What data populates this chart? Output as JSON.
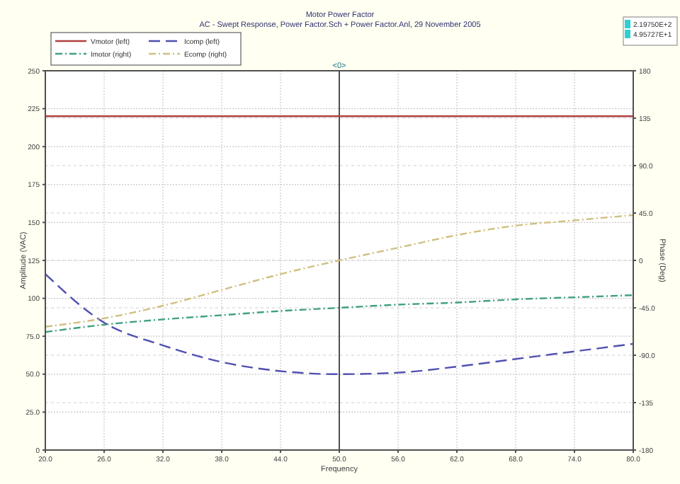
{
  "chart_data": {
    "type": "line",
    "title": "Motor Power Factor",
    "subtitle": "AC - Swept Response,    Power Factor.Sch + Power Factor.Anl,  29 November 2005",
    "xlabel": "Frequency",
    "ylabel": "Amplitude (VAC)",
    "y2label": "Phase (Deg)",
    "x": [
      20,
      26,
      32,
      38,
      44,
      50,
      56,
      62,
      68,
      74,
      80
    ],
    "xlim": [
      20,
      80
    ],
    "xticks": [
      {
        "value": 20,
        "label": "20.0"
      },
      {
        "value": 26,
        "label": "26.0"
      },
      {
        "value": 32,
        "label": "32.0"
      },
      {
        "value": 38,
        "label": "38.0"
      },
      {
        "value": 44,
        "label": "44.0"
      },
      {
        "value": 50,
        "label": "50.0"
      },
      {
        "value": 56,
        "label": "56.0"
      },
      {
        "value": 62,
        "label": "62.0"
      },
      {
        "value": 68,
        "label": "68.0"
      },
      {
        "value": 74,
        "label": "74.0"
      },
      {
        "value": 80,
        "label": "80.0"
      }
    ],
    "ylim": [
      0,
      250
    ],
    "yticks": [
      0,
      {
        "value": 25,
        "label": "25.0"
      },
      {
        "value": 50,
        "label": "50.0"
      },
      {
        "value": 75,
        "label": "75.0"
      },
      100,
      125,
      150,
      175,
      200,
      225,
      250
    ],
    "y2lim": [
      -180,
      180
    ],
    "y2ticks": [
      -180,
      -135,
      {
        "value": -90,
        "label": "-90.0"
      },
      {
        "value": -45,
        "label": "-45.0"
      },
      0,
      {
        "value": 45,
        "label": "45.0"
      },
      {
        "value": 90,
        "label": "90.0"
      },
      135,
      180
    ],
    "series": [
      {
        "name": "Vmotor (left)",
        "color": "#b04040",
        "line_style": "solid",
        "values": [
          220,
          220,
          220,
          220,
          220,
          220,
          220,
          220,
          220,
          220,
          220
        ]
      },
      {
        "name": "Imotor (right)",
        "color": "#40a080",
        "axis": "y2",
        "line_style": "dotted",
        "values": [
          -68,
          -61,
          -56,
          -52,
          -48,
          -45,
          -42,
          -40,
          -37,
          -35,
          -33
        ]
      },
      {
        "name": "Icomp (left)",
        "color": "#5050b0",
        "line_style": "dashed",
        "values": [
          116,
          84,
          69,
          58,
          52,
          50,
          51,
          55,
          60,
          65,
          70
        ]
      },
      {
        "name": "Ecomp (right)",
        "color": "#d0c080",
        "axis": "y2",
        "line_style": "dotted",
        "values": [
          -63,
          -55,
          -43,
          -28,
          -13,
          0,
          12,
          24,
          33,
          38,
          43
        ]
      }
    ],
    "ref_lines": [
      {
        "axis": "x",
        "value": 50,
        "color": "#505050"
      }
    ],
    "annotations": [
      "2.19750E+2",
      "4.95727E+1",
      {
        "text": "<0>",
        "x": 50,
        "y": 250
      }
    ],
    "grid": true,
    "legend": "top left"
  }
}
